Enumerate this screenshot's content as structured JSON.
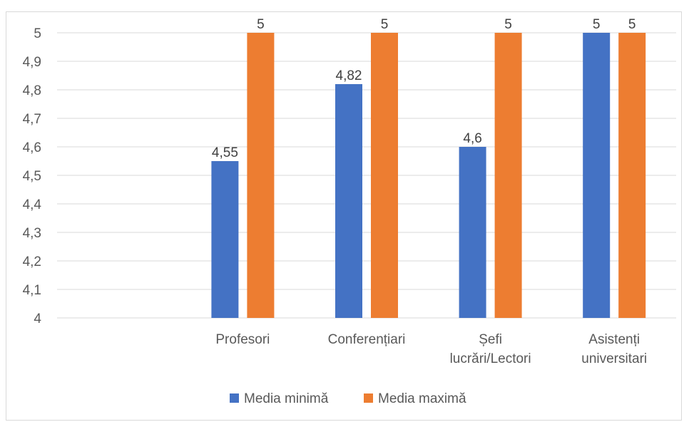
{
  "chart_data": {
    "type": "bar",
    "categories": [
      [
        "",
        ""
      ],
      [
        "Profesori"
      ],
      [
        "Conferențiari"
      ],
      [
        "Șefi",
        "lucrări/Lectori"
      ],
      [
        "Asistenți",
        "universitari"
      ]
    ],
    "series": [
      {
        "name": "Media minimă",
        "color": "#4472C4",
        "values": [
          null,
          4.55,
          4.82,
          4.6,
          5
        ],
        "labels": [
          "",
          "4,55",
          "4,82",
          "4,6",
          "5"
        ]
      },
      {
        "name": "Media maximă",
        "color": "#ED7D31",
        "values": [
          null,
          5,
          5,
          5,
          5
        ],
        "labels": [
          "",
          "5",
          "5",
          "5",
          "5"
        ]
      }
    ],
    "ylim": [
      4,
      5
    ],
    "yticks": [
      "4",
      "4,1",
      "4,2",
      "4,3",
      "4,4",
      "4,5",
      "4,6",
      "4,7",
      "4,8",
      "4,9",
      "5"
    ],
    "grid": true,
    "legend": "bottom"
  }
}
